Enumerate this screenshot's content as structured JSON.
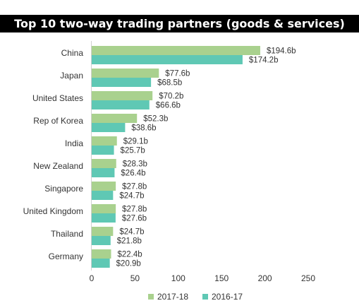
{
  "chart_data": {
    "type": "bar",
    "orientation": "horizontal",
    "title": "Top 10 two-way trading partners (goods & services)",
    "categories": [
      "China",
      "Japan",
      "United States",
      "Rep of Korea",
      "India",
      "New Zealand",
      "Singapore",
      "United Kingdom",
      "Thailand",
      "Germany"
    ],
    "series": [
      {
        "name": "2017-18",
        "color": "#A9D18E",
        "values": [
          194.6,
          77.6,
          70.2,
          52.3,
          29.1,
          28.3,
          27.8,
          27.8,
          24.7,
          22.4
        ],
        "labels": [
          "$194.6b",
          "$77.6b",
          "$70.2b",
          "$52.3b",
          "$29.1b",
          "$28.3b",
          "$27.8b",
          "$27.8b",
          "$24.7b",
          "$22.4b"
        ]
      },
      {
        "name": "2016-17",
        "color": "#5FC8B4",
        "values": [
          174.2,
          68.5,
          66.6,
          38.6,
          25.7,
          26.4,
          24.7,
          27.6,
          21.8,
          20.9
        ],
        "labels": [
          "$174.2b",
          "$68.5b",
          "$66.6b",
          "$38.6b",
          "$25.7b",
          "$26.4b",
          "$24.7b",
          "$27.6b",
          "$21.8b",
          "$20.9b"
        ]
      }
    ],
    "xlim": [
      0,
      250
    ],
    "xticks": [
      "0",
      "50",
      "100",
      "150",
      "200",
      "250"
    ],
    "grid": false,
    "legend_position": "bottom"
  }
}
